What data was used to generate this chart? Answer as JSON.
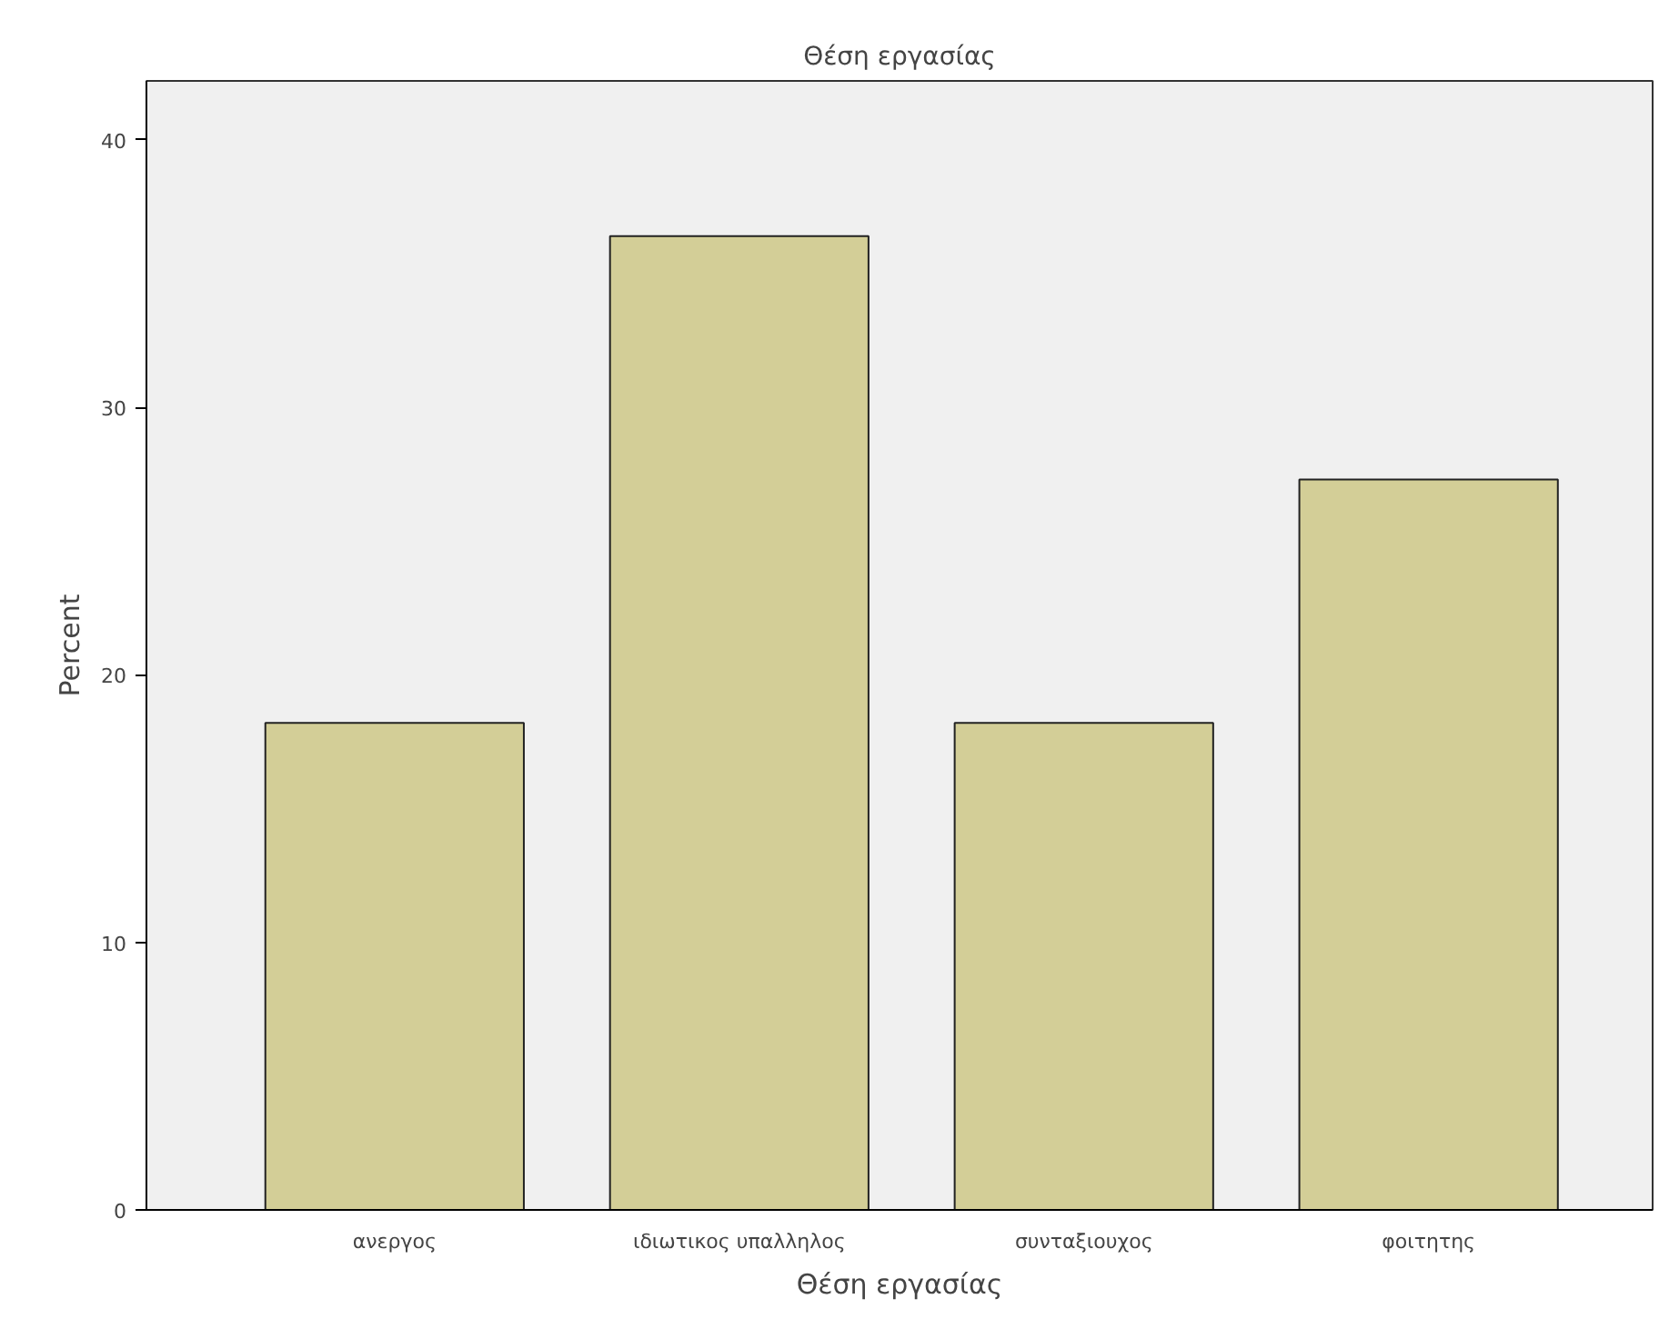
{
  "chart_data": {
    "type": "bar",
    "title": "Θέση εργασίας",
    "xlabel": "Θέση εργασίας",
    "ylabel": "Percent",
    "categories": [
      "ανεργος",
      "ιδιωτικος υπαλληλος",
      "συνταξιουχος",
      "φοιτητης"
    ],
    "values": [
      18.2,
      36.4,
      18.2,
      27.3
    ],
    "color": "#d3ce97",
    "ylim": [
      0,
      42.2
    ],
    "yticks": [
      0,
      10,
      20,
      30,
      40
    ],
    "grid": false
  }
}
